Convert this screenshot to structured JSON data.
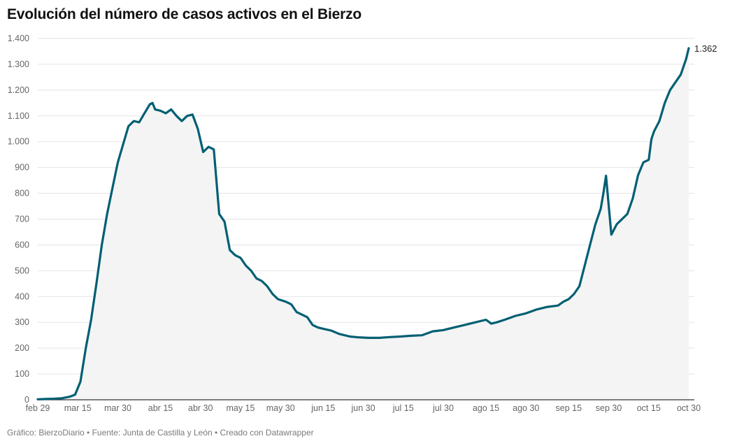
{
  "chart_data": {
    "type": "area",
    "title": "Evolución del número de casos activos en el Bierzo",
    "footer": "Gráfico: BierzoDiario • Fuente: Junta de Castilla y León • Creado con Datawrapper",
    "y_ticks": [
      {
        "value": 0,
        "label": "0"
      },
      {
        "value": 100,
        "label": "100"
      },
      {
        "value": 200,
        "label": "200"
      },
      {
        "value": 300,
        "label": "300"
      },
      {
        "value": 400,
        "label": "400"
      },
      {
        "value": 500,
        "label": "500"
      },
      {
        "value": 600,
        "label": "600"
      },
      {
        "value": 700,
        "label": "700"
      },
      {
        "value": 800,
        "label": "800"
      },
      {
        "value": 900,
        "label": "900"
      },
      {
        "value": 1000,
        "label": "1.000"
      },
      {
        "value": 1100,
        "label": "1.100"
      },
      {
        "value": 1200,
        "label": "1.200"
      },
      {
        "value": 1300,
        "label": "1.300"
      },
      {
        "value": 1400,
        "label": "1.400"
      }
    ],
    "x_ticks": [
      {
        "date": "2020-02-29",
        "label": "feb 29"
      },
      {
        "date": "2020-03-15",
        "label": "mar 15"
      },
      {
        "date": "2020-03-30",
        "label": "mar 30"
      },
      {
        "date": "2020-04-15",
        "label": "abr 15"
      },
      {
        "date": "2020-04-30",
        "label": "abr 30"
      },
      {
        "date": "2020-05-15",
        "label": "may 15"
      },
      {
        "date": "2020-05-30",
        "label": "may 30"
      },
      {
        "date": "2020-06-15",
        "label": "jun 15"
      },
      {
        "date": "2020-06-30",
        "label": "jun 30"
      },
      {
        "date": "2020-07-15",
        "label": "jul 15"
      },
      {
        "date": "2020-07-30",
        "label": "jul 30"
      },
      {
        "date": "2020-08-15",
        "label": "ago 15"
      },
      {
        "date": "2020-08-30",
        "label": "ago 30"
      },
      {
        "date": "2020-09-15",
        "label": "sep 15"
      },
      {
        "date": "2020-09-30",
        "label": "sep 30"
      },
      {
        "date": "2020-10-15",
        "label": "oct 15"
      },
      {
        "date": "2020-10-30",
        "label": "oct 30"
      }
    ],
    "ylim": [
      0,
      1400
    ],
    "xlim": [
      "2020-02-29",
      "2020-10-30"
    ],
    "grid": true,
    "legend": "none",
    "colors": {
      "line": "#005f73",
      "area": "#f4f4f4",
      "grid": "#e3e3e3",
      "axis": "#333333"
    },
    "end_label": "1.362",
    "series": [
      {
        "x": [
          "2020-02-29",
          "2020-03-03",
          "2020-03-06",
          "2020-03-09",
          "2020-03-12",
          "2020-03-14",
          "2020-03-16",
          "2020-03-18",
          "2020-03-20",
          "2020-03-22",
          "2020-03-24",
          "2020-03-26",
          "2020-03-28",
          "2020-03-30",
          "2020-04-01",
          "2020-04-03",
          "2020-04-05",
          "2020-04-07",
          "2020-04-09",
          "2020-04-11",
          "2020-04-12",
          "2020-04-13",
          "2020-04-15",
          "2020-04-17",
          "2020-04-19",
          "2020-04-21",
          "2020-04-23",
          "2020-04-25",
          "2020-04-27",
          "2020-04-29",
          "2020-05-01",
          "2020-05-03",
          "2020-05-05",
          "2020-05-07",
          "2020-05-09",
          "2020-05-11",
          "2020-05-13",
          "2020-05-15",
          "2020-05-17",
          "2020-05-19",
          "2020-05-21",
          "2020-05-23",
          "2020-05-25",
          "2020-05-27",
          "2020-05-29",
          "2020-06-01",
          "2020-06-03",
          "2020-06-05",
          "2020-06-07",
          "2020-06-09",
          "2020-06-11",
          "2020-06-13",
          "2020-06-15",
          "2020-06-18",
          "2020-06-21",
          "2020-06-25",
          "2020-06-28",
          "2020-07-02",
          "2020-07-06",
          "2020-07-10",
          "2020-07-14",
          "2020-07-18",
          "2020-07-22",
          "2020-07-26",
          "2020-07-30",
          "2020-08-03",
          "2020-08-07",
          "2020-08-11",
          "2020-08-15",
          "2020-08-17",
          "2020-08-19",
          "2020-08-22",
          "2020-08-26",
          "2020-08-30",
          "2020-09-03",
          "2020-09-07",
          "2020-09-11",
          "2020-09-13",
          "2020-09-15",
          "2020-09-17",
          "2020-09-19",
          "2020-09-21",
          "2020-09-23",
          "2020-09-25",
          "2020-09-27",
          "2020-09-28",
          "2020-09-29",
          "2020-10-01",
          "2020-10-03",
          "2020-10-05",
          "2020-10-07",
          "2020-10-09",
          "2020-10-11",
          "2020-10-13",
          "2020-10-15",
          "2020-10-16",
          "2020-10-17",
          "2020-10-19",
          "2020-10-21",
          "2020-10-23",
          "2020-10-25",
          "2020-10-27",
          "2020-10-29",
          "2020-10-30"
        ],
        "y": [
          2,
          3,
          4,
          6,
          12,
          20,
          70,
          200,
          310,
          450,
          600,
          720,
          820,
          920,
          990,
          1060,
          1080,
          1075,
          1110,
          1145,
          1150,
          1125,
          1120,
          1110,
          1125,
          1100,
          1080,
          1100,
          1105,
          1050,
          960,
          980,
          970,
          720,
          690,
          580,
          560,
          550,
          520,
          500,
          470,
          460,
          440,
          410,
          390,
          380,
          370,
          340,
          330,
          320,
          290,
          280,
          275,
          268,
          255,
          245,
          242,
          240,
          240,
          243,
          245,
          248,
          250,
          265,
          270,
          280,
          290,
          300,
          310,
          295,
          300,
          310,
          325,
          335,
          350,
          360,
          365,
          380,
          390,
          410,
          440,
          520,
          600,
          680,
          740,
          800,
          868,
          640,
          680,
          700,
          720,
          780,
          870,
          920,
          930,
          1010,
          1040,
          1080,
          1150,
          1200,
          1230,
          1260,
          1320,
          1362
        ]
      }
    ]
  }
}
